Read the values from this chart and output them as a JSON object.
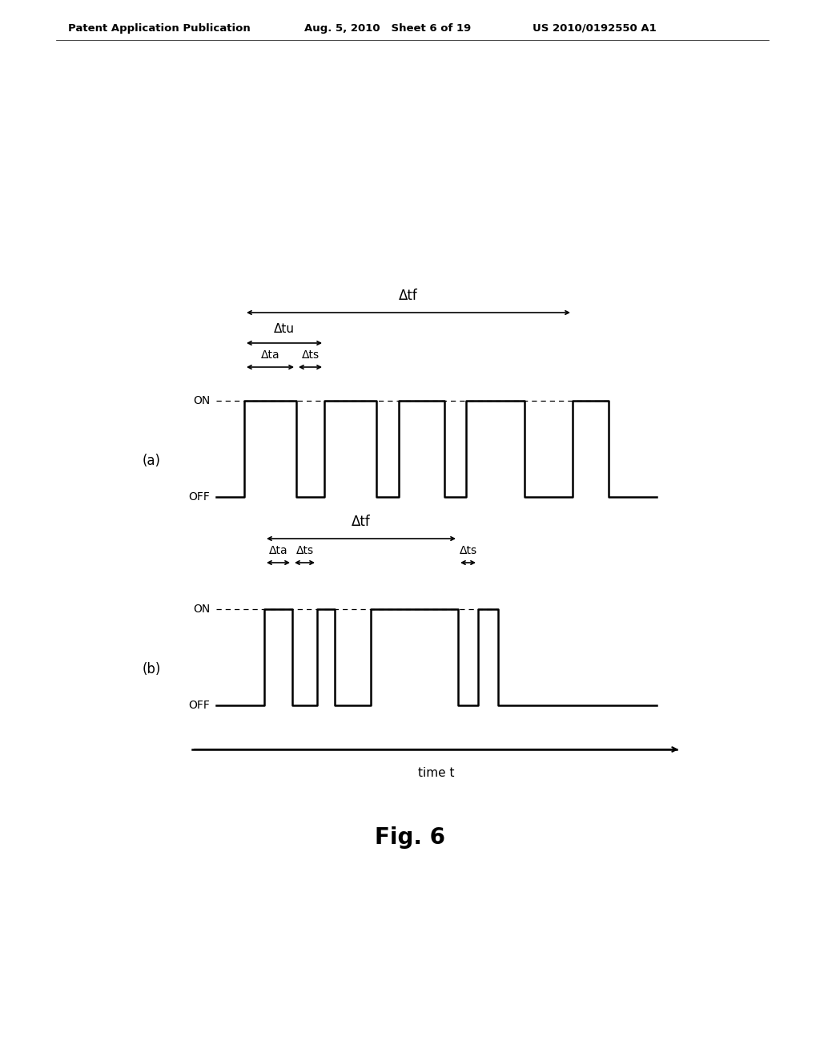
{
  "bg_color": "#ffffff",
  "header_left": "Patent Application Publication",
  "header_mid": "Aug. 5, 2010   Sheet 6 of 19",
  "header_right": "US 2010/0192550 A1",
  "fig_label": "Fig. 6",
  "time_label": "time t",
  "panel_a_label": "(a)",
  "panel_b_label": "(b)",
  "on_label": "ON",
  "off_label": "OFF",
  "delta_tf": "Δtf",
  "delta_tu": "Δtu",
  "delta_ta": "Δta",
  "delta_ts": "Δts"
}
